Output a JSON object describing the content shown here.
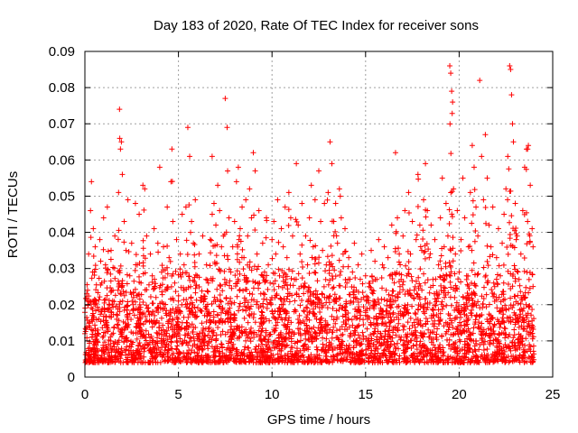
{
  "chart_data": {
    "type": "scatter",
    "title": "Day 183 of 2020, Rate Of TEC Index for receiver sons",
    "xlabel": "GPS time / hours",
    "ylabel": "ROTI / TECUs",
    "xlim": [
      0,
      25
    ],
    "ylim": [
      0,
      0.09
    ],
    "x_ticks": [
      0,
      5,
      10,
      15,
      20,
      25
    ],
    "x_tick_labels": [
      "0",
      "5",
      "10",
      "15",
      "20",
      "25"
    ],
    "y_ticks": [
      0,
      0.01,
      0.02,
      0.03,
      0.04,
      0.05,
      0.06,
      0.07,
      0.08,
      0.09
    ],
    "y_tick_labels": [
      "0",
      "0.01",
      "0.02",
      "0.03",
      "0.04",
      "0.05",
      "0.06",
      "0.07",
      "0.08",
      "0.09"
    ],
    "grid": true,
    "marker": "+",
    "color": "#ff0000",
    "series": [
      {
        "name": "ROTI",
        "note": "representative sample of the dense point cloud",
        "points": [
          [
            0.0,
            0.012
          ],
          [
            0.1,
            0.023
          ],
          [
            0.2,
            0.034
          ],
          [
            0.25,
            0.008
          ],
          [
            0.3,
            0.046
          ],
          [
            0.35,
            0.054
          ],
          [
            0.4,
            0.017
          ],
          [
            0.45,
            0.041
          ],
          [
            0.5,
            0.029
          ],
          [
            0.55,
            0.036
          ],
          [
            0.6,
            0.021
          ],
          [
            0.7,
            0.013
          ],
          [
            0.8,
            0.038
          ],
          [
            0.9,
            0.026
          ],
          [
            1.0,
            0.044
          ],
          [
            1.1,
            0.031
          ],
          [
            1.2,
            0.047
          ],
          [
            1.3,
            0.019
          ],
          [
            1.4,
            0.035
          ],
          [
            1.5,
            0.024
          ],
          [
            1.6,
            0.039
          ],
          [
            1.7,
            0.016
          ],
          [
            1.8,
            0.051
          ],
          [
            1.85,
            0.074
          ],
          [
            1.9,
            0.063
          ],
          [
            1.95,
            0.065
          ],
          [
            2.0,
            0.056
          ],
          [
            2.1,
            0.043
          ],
          [
            2.2,
            0.035
          ],
          [
            2.3,
            0.049
          ],
          [
            2.4,
            0.028
          ],
          [
            2.5,
            0.037
          ],
          [
            2.6,
            0.022
          ],
          [
            2.7,
            0.048
          ],
          [
            2.8,
            0.031
          ],
          [
            2.9,
            0.045
          ],
          [
            3.0,
            0.026
          ],
          [
            3.1,
            0.053
          ],
          [
            3.2,
            0.052
          ],
          [
            3.3,
            0.039
          ],
          [
            3.4,
            0.018
          ],
          [
            3.5,
            0.034
          ],
          [
            3.6,
            0.028
          ],
          [
            3.7,
            0.041
          ],
          [
            3.8,
            0.022
          ],
          [
            3.9,
            0.037
          ],
          [
            4.0,
            0.058
          ],
          [
            4.1,
            0.029
          ],
          [
            4.2,
            0.036
          ],
          [
            4.3,
            0.024
          ],
          [
            4.4,
            0.047
          ],
          [
            4.5,
            0.033
          ],
          [
            4.6,
            0.054
          ],
          [
            4.65,
            0.063
          ],
          [
            4.7,
            0.043
          ],
          [
            4.8,
            0.026
          ],
          [
            4.9,
            0.038
          ],
          [
            5.0,
            0.021
          ],
          [
            5.1,
            0.034
          ],
          [
            5.2,
            0.045
          ],
          [
            5.3,
            0.031
          ],
          [
            5.4,
            0.047
          ],
          [
            5.5,
            0.069
          ],
          [
            5.6,
            0.061
          ],
          [
            5.7,
            0.043
          ],
          [
            5.8,
            0.037
          ],
          [
            5.9,
            0.049
          ],
          [
            6.0,
            0.028
          ],
          [
            6.1,
            0.034
          ],
          [
            6.2,
            0.022
          ],
          [
            6.3,
            0.039
          ],
          [
            6.4,
            0.017
          ],
          [
            6.5,
            0.031
          ],
          [
            6.6,
            0.026
          ],
          [
            6.7,
            0.038
          ],
          [
            6.8,
            0.061
          ],
          [
            6.9,
            0.048
          ],
          [
            7.0,
            0.042
          ],
          [
            7.1,
            0.053
          ],
          [
            7.2,
            0.046
          ],
          [
            7.3,
            0.036
          ],
          [
            7.4,
            0.039
          ],
          [
            7.5,
            0.077
          ],
          [
            7.6,
            0.069
          ],
          [
            7.7,
            0.044
          ],
          [
            7.8,
            0.029
          ],
          [
            7.9,
            0.036
          ],
          [
            8.0,
            0.043
          ],
          [
            8.1,
            0.054
          ],
          [
            8.2,
            0.058
          ],
          [
            8.3,
            0.041
          ],
          [
            8.4,
            0.047
          ],
          [
            8.5,
            0.033
          ],
          [
            8.6,
            0.049
          ],
          [
            8.7,
            0.039
          ],
          [
            8.8,
            0.052
          ],
          [
            8.9,
            0.044
          ],
          [
            9.0,
            0.062
          ],
          [
            9.1,
            0.057
          ],
          [
            9.2,
            0.034
          ],
          [
            9.3,
            0.046
          ],
          [
            9.4,
            0.023
          ],
          [
            9.5,
            0.037
          ],
          [
            9.6,
            0.029
          ],
          [
            9.7,
            0.044
          ],
          [
            9.8,
            0.031
          ],
          [
            9.9,
            0.026
          ],
          [
            10.0,
            0.038
          ],
          [
            10.1,
            0.043
          ],
          [
            10.2,
            0.034
          ],
          [
            10.3,
            0.049
          ],
          [
            10.4,
            0.028
          ],
          [
            10.5,
            0.041
          ],
          [
            10.6,
            0.036
          ],
          [
            10.7,
            0.047
          ],
          [
            10.8,
            0.033
          ],
          [
            10.9,
            0.051
          ],
          [
            11.0,
            0.044
          ],
          [
            11.1,
            0.039
          ],
          [
            11.2,
            0.027
          ],
          [
            11.3,
            0.059
          ],
          [
            11.4,
            0.042
          ],
          [
            11.5,
            0.034
          ],
          [
            11.6,
            0.048
          ],
          [
            11.7,
            0.025
          ],
          [
            11.8,
            0.039
          ],
          [
            11.9,
            0.031
          ],
          [
            12.0,
            0.044
          ],
          [
            12.1,
            0.053
          ],
          [
            12.2,
            0.036
          ],
          [
            12.3,
            0.049
          ],
          [
            12.4,
            0.022
          ],
          [
            12.5,
            0.057
          ],
          [
            12.6,
            0.043
          ],
          [
            12.7,
            0.035
          ],
          [
            12.8,
            0.048
          ],
          [
            12.9,
            0.031
          ],
          [
            13.0,
            0.051
          ],
          [
            13.1,
            0.065
          ],
          [
            13.2,
            0.059
          ],
          [
            13.3,
            0.043
          ],
          [
            13.4,
            0.048
          ],
          [
            13.5,
            0.037
          ],
          [
            13.6,
            0.052
          ],
          [
            13.7,
            0.044
          ],
          [
            13.8,
            0.034
          ],
          [
            13.9,
            0.041
          ],
          [
            14.0,
            0.026
          ],
          [
            14.1,
            0.033
          ],
          [
            14.2,
            0.021
          ],
          [
            14.3,
            0.029
          ],
          [
            14.4,
            0.037
          ],
          [
            14.5,
            0.024
          ],
          [
            14.6,
            0.031
          ],
          [
            14.7,
            0.018
          ],
          [
            14.8,
            0.034
          ],
          [
            14.9,
            0.022
          ],
          [
            15.0,
            0.028
          ],
          [
            15.1,
            0.016
          ],
          [
            15.2,
            0.025
          ],
          [
            15.3,
            0.035
          ],
          [
            15.4,
            0.021
          ],
          [
            15.5,
            0.032
          ],
          [
            15.6,
            0.027
          ],
          [
            15.7,
            0.038
          ],
          [
            15.8,
            0.019
          ],
          [
            15.9,
            0.031
          ],
          [
            16.0,
            0.036
          ],
          [
            16.1,
            0.024
          ],
          [
            16.2,
            0.033
          ],
          [
            16.3,
            0.028
          ],
          [
            16.4,
            0.042
          ],
          [
            16.5,
            0.021
          ],
          [
            16.6,
            0.062
          ],
          [
            16.7,
            0.044
          ],
          [
            16.8,
            0.034
          ],
          [
            16.9,
            0.027
          ],
          [
            17.0,
            0.039
          ],
          [
            17.1,
            0.046
          ],
          [
            17.2,
            0.028
          ],
          [
            17.3,
            0.051
          ],
          [
            17.4,
            0.034
          ],
          [
            17.5,
            0.043
          ],
          [
            17.6,
            0.024
          ],
          [
            17.7,
            0.038
          ],
          [
            17.8,
            0.056
          ],
          [
            17.9,
            0.042
          ],
          [
            18.0,
            0.035
          ],
          [
            18.1,
            0.049
          ],
          [
            18.2,
            0.059
          ],
          [
            18.3,
            0.046
          ],
          [
            18.4,
            0.033
          ],
          [
            18.5,
            0.042
          ],
          [
            18.6,
            0.027
          ],
          [
            18.7,
            0.038
          ],
          [
            18.8,
            0.023
          ],
          [
            18.9,
            0.031
          ],
          [
            19.0,
            0.044
          ],
          [
            19.1,
            0.055
          ],
          [
            19.2,
            0.036
          ],
          [
            19.3,
            0.048
          ],
          [
            19.4,
            0.039
          ],
          [
            19.5,
            0.086
          ],
          [
            19.55,
            0.084
          ],
          [
            19.6,
            0.079
          ],
          [
            19.65,
            0.076
          ],
          [
            19.7,
            0.052
          ],
          [
            19.8,
            0.034
          ],
          [
            19.9,
            0.046
          ],
          [
            20.0,
            0.029
          ],
          [
            20.1,
            0.038
          ],
          [
            20.2,
            0.055
          ],
          [
            20.3,
            0.044
          ],
          [
            20.4,
            0.028
          ],
          [
            20.5,
            0.036
          ],
          [
            20.6,
            0.051
          ],
          [
            20.7,
            0.064
          ],
          [
            20.8,
            0.058
          ],
          [
            20.9,
            0.047
          ],
          [
            21.0,
            0.039
          ],
          [
            21.1,
            0.082
          ],
          [
            21.2,
            0.061
          ],
          [
            21.3,
            0.049
          ],
          [
            21.4,
            0.067
          ],
          [
            21.5,
            0.055
          ],
          [
            21.6,
            0.042
          ],
          [
            21.7,
            0.036
          ],
          [
            21.8,
            0.047
          ],
          [
            21.9,
            0.025
          ],
          [
            22.0,
            0.033
          ],
          [
            22.1,
            0.041
          ],
          [
            22.2,
            0.028
          ],
          [
            22.3,
            0.037
          ],
          [
            22.4,
            0.045
          ],
          [
            22.5,
            0.052
          ],
          [
            22.6,
            0.061
          ],
          [
            22.7,
            0.086
          ],
          [
            22.75,
            0.085
          ],
          [
            22.8,
            0.078
          ],
          [
            22.85,
            0.07
          ],
          [
            22.9,
            0.065
          ],
          [
            23.0,
            0.048
          ],
          [
            23.1,
            0.039
          ],
          [
            23.2,
            0.027
          ],
          [
            23.3,
            0.034
          ],
          [
            23.4,
            0.046
          ],
          [
            23.5,
            0.058
          ],
          [
            23.6,
            0.063
          ],
          [
            23.7,
            0.064
          ],
          [
            23.8,
            0.053
          ],
          [
            23.9,
            0.041
          ],
          [
            23.95,
            0.036
          ]
        ]
      }
    ]
  }
}
